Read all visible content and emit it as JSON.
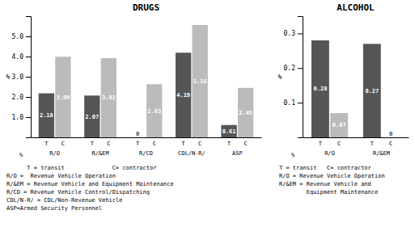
{
  "chart_data": [
    {
      "type": "bar",
      "title": "DRUGS",
      "ylabel": "%",
      "categories": [
        "R/O",
        "R/&EM",
        "R/CD",
        "CDL/N-R/",
        "ASP"
      ],
      "series": [
        {
          "name": "T",
          "color": "#555555",
          "values": [
            2.18,
            2.07,
            0,
            4.19,
            0.61
          ]
        },
        {
          "name": "C",
          "color": "#BBBBBB",
          "values": [
            3.99,
            3.92,
            2.63,
            5.56,
            2.45
          ]
        }
      ],
      "ylim": [
        0,
        6.0
      ],
      "yticks": [
        {
          "value": 1.0,
          "label": "1.0"
        },
        {
          "value": 2.0,
          "label": "2.0"
        },
        {
          "value": 3.0,
          "label": "3.0"
        },
        {
          "value": 4.0,
          "label": "4.0"
        },
        {
          "value": 5.0,
          "label": "5.0"
        }
      ],
      "grid": false,
      "data_labels": true,
      "annotations": [
        "      T = transit              C= contractor",
        "R/O =  Revenue Vehicle Operation",
        "R/&EM = Revenue Vehicle and Equipment Maintenance",
        "R/CD = Revenue Vehicle Control/Dispatching",
        "CDL/N-R/ = CDL/Non-Revenue Vehicle",
        "ASP=Armed Security Personnel"
      ]
    },
    {
      "type": "bar",
      "title": "ALCOHOL",
      "ylabel": "%",
      "categories": [
        "R/O",
        "R/&EM"
      ],
      "series": [
        {
          "name": "T",
          "color": "#555555",
          "values": [
            0.28,
            0.27
          ]
        },
        {
          "name": "C",
          "color": "#BBBBBB",
          "values": [
            0.07,
            0
          ]
        }
      ],
      "ylim": [
        0,
        0.35
      ],
      "yticks": [
        0.1,
        0.2,
        0.3
      ],
      "grid": false,
      "data_labels": true,
      "annotations": [
        "T = transit   C= contractor",
        "R/O = Revenue Vehicle Operation",
        "R/&EM = Revenue Vehicle and",
        "        Equipment Maintenance"
      ]
    }
  ]
}
